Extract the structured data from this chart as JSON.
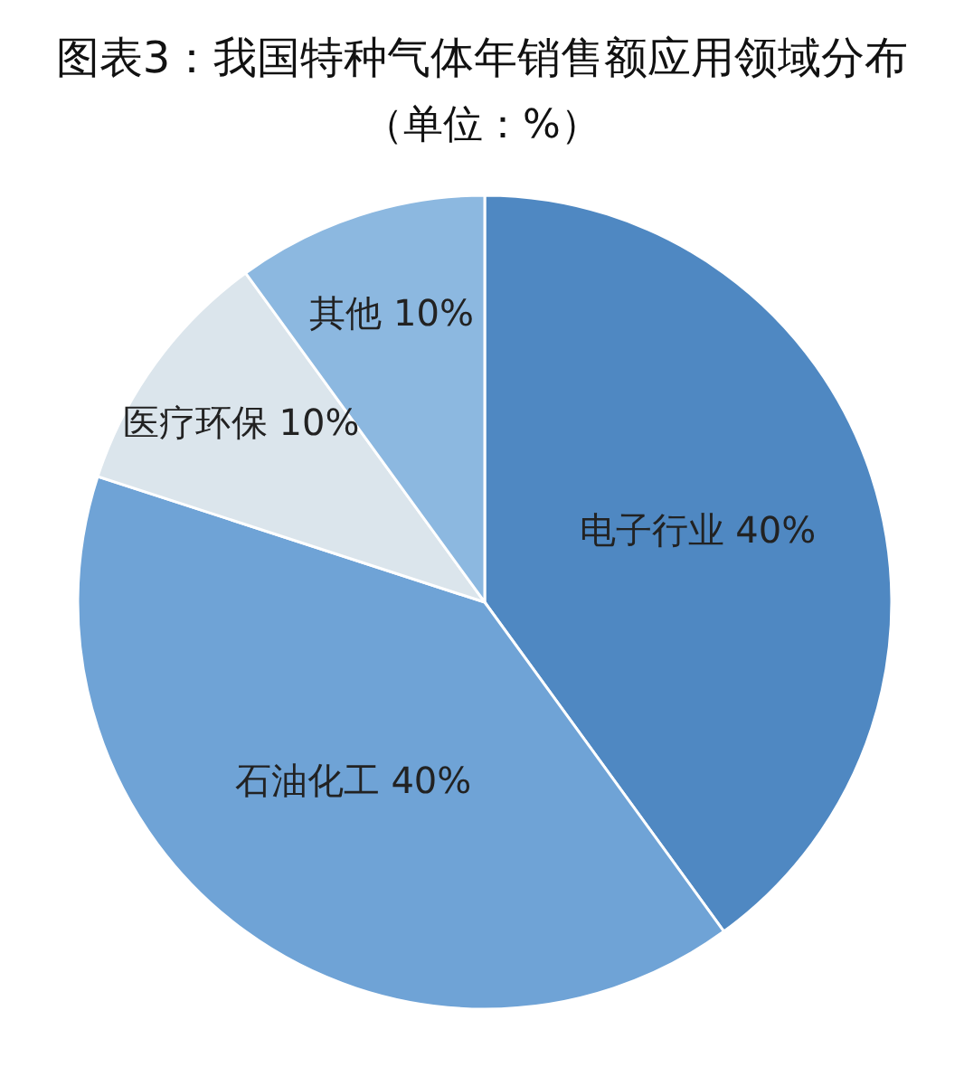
{
  "chart_data": {
    "type": "pie",
    "title": "图表3：我国特种气体年销售额应用领域分布",
    "subtitle": "（单位：%）",
    "categories": [
      "电子行业",
      "石油化工",
      "医疗环保",
      "其他"
    ],
    "values": [
      40,
      40,
      10,
      10
    ],
    "colors": [
      "#4f88c2",
      "#6fa3d6",
      "#dbe5ec",
      "#8cb8e0"
    ],
    "value_labels": [
      "40%",
      "40%",
      "10%",
      "10%"
    ]
  }
}
